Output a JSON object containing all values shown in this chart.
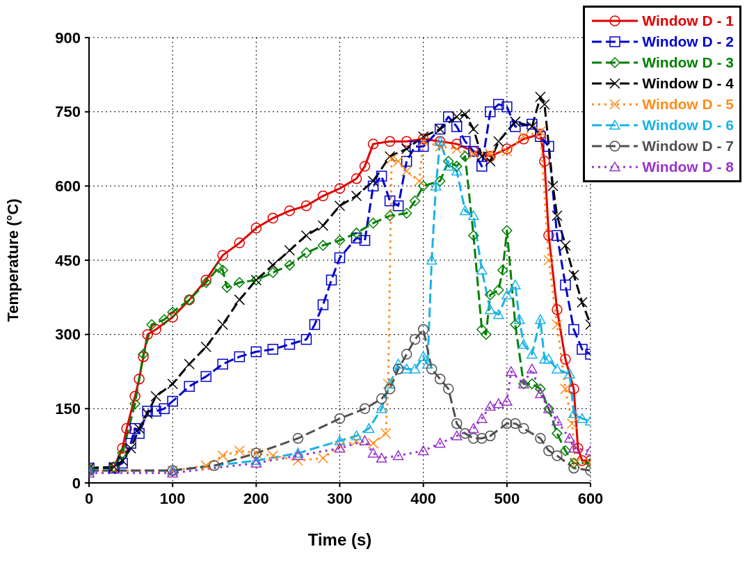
{
  "chart_data": {
    "type": "line",
    "xlabel": "Time (s)",
    "ylabel": "Temperature (°C)",
    "xlim": [
      0,
      600
    ],
    "xticks": [
      0,
      100,
      200,
      300,
      400,
      500,
      600
    ],
    "ylim": [
      0,
      900
    ],
    "yticks": [
      0,
      150,
      300,
      450,
      600,
      750,
      900
    ],
    "grid": true,
    "legend": "top right",
    "series": [
      {
        "name": "Window D - 1",
        "color": "#e00000",
        "marker": "circle",
        "line_style": "solid",
        "x": [
          30,
          40,
          45,
          55,
          60,
          65,
          70,
          80,
          100,
          120,
          140,
          160,
          180,
          200,
          220,
          240,
          260,
          280,
          300,
          320,
          330,
          340,
          360,
          380,
          400,
          420,
          440,
          460,
          480,
          500,
          520,
          540,
          545,
          550,
          560,
          570,
          580,
          585,
          590,
          600
        ],
        "values": [
          32,
          70,
          110,
          175,
          210,
          255,
          300,
          310,
          335,
          370,
          410,
          460,
          485,
          515,
          535,
          550,
          560,
          580,
          595,
          615,
          640,
          685,
          690,
          690,
          695,
          690,
          685,
          670,
          660,
          675,
          695,
          705,
          650,
          500,
          350,
          250,
          190,
          70,
          45,
          45
        ]
      },
      {
        "name": "Window D - 2",
        "color": "#0000cc",
        "marker": "square",
        "line_style": "dashed",
        "x": [
          0,
          30,
          40,
          50,
          55,
          60,
          70,
          80,
          90,
          100,
          120,
          140,
          160,
          180,
          200,
          220,
          240,
          260,
          270,
          280,
          290,
          300,
          320,
          330,
          340,
          350,
          360,
          370,
          380,
          390,
          400,
          420,
          430,
          440,
          450,
          460,
          470,
          480,
          490,
          500,
          510,
          530,
          540,
          550,
          560,
          570,
          580,
          590,
          600
        ],
        "values": [
          30,
          30,
          40,
          80,
          110,
          100,
          145,
          145,
          150,
          165,
          195,
          215,
          240,
          255,
          265,
          270,
          280,
          290,
          320,
          360,
          410,
          455,
          495,
          490,
          600,
          620,
          570,
          560,
          650,
          680,
          680,
          715,
          740,
          720,
          690,
          670,
          640,
          750,
          765,
          760,
          720,
          725,
          700,
          680,
          500,
          400,
          310,
          270,
          260
        ]
      },
      {
        "name": "Window D - 3",
        "color": "#008000",
        "marker": "diamond",
        "line_style": "dashed",
        "x": [
          0,
          30,
          40,
          55,
          65,
          75,
          90,
          100,
          120,
          140,
          155,
          160,
          165,
          180,
          200,
          220,
          240,
          260,
          280,
          300,
          320,
          340,
          360,
          380,
          390,
          400,
          420,
          430,
          440,
          450,
          460,
          470,
          475,
          480,
          490,
          495,
          500,
          510,
          520,
          530,
          540,
          550,
          560,
          570,
          580,
          600
        ],
        "values": [
          30,
          32,
          60,
          160,
          260,
          320,
          330,
          345,
          370,
          405,
          435,
          430,
          395,
          405,
          410,
          425,
          440,
          465,
          480,
          490,
          505,
          525,
          540,
          545,
          570,
          600,
          610,
          650,
          640,
          660,
          500,
          310,
          300,
          380,
          390,
          430,
          510,
          320,
          200,
          200,
          190,
          150,
          100,
          65,
          40,
          40
        ]
      },
      {
        "name": "Window D - 4",
        "color": "#000000",
        "marker": "cross",
        "line_style": "dashed",
        "x": [
          0,
          30,
          40,
          50,
          60,
          70,
          80,
          100,
          120,
          140,
          160,
          180,
          200,
          220,
          240,
          260,
          280,
          300,
          320,
          340,
          360,
          380,
          400,
          420,
          440,
          450,
          460,
          470,
          480,
          490,
          510,
          530,
          540,
          545,
          555,
          560,
          570,
          580,
          590,
          600
        ],
        "values": [
          30,
          32,
          45,
          70,
          110,
          140,
          175,
          200,
          240,
          275,
          320,
          370,
          410,
          440,
          470,
          500,
          520,
          560,
          580,
          610,
          660,
          675,
          700,
          715,
          740,
          745,
          715,
          660,
          650,
          690,
          730,
          720,
          780,
          765,
          600,
          540,
          480,
          420,
          365,
          320
        ]
      },
      {
        "name": "Window D - 5",
        "color": "#ff8c1a",
        "marker": "cross",
        "line_style": "dotted",
        "x": [
          0,
          100,
          140,
          160,
          180,
          200,
          220,
          250,
          280,
          300,
          320,
          340,
          355,
          358,
          362,
          370,
          380,
          395,
          400,
          420,
          440,
          460,
          480,
          500,
          520,
          540,
          550,
          560,
          570,
          578,
          582,
          600
        ],
        "values": [
          25,
          25,
          35,
          55,
          65,
          60,
          55,
          45,
          50,
          75,
          85,
          80,
          100,
          200,
          655,
          650,
          630,
          610,
          690,
          680,
          675,
          665,
          665,
          670,
          700,
          710,
          450,
          320,
          190,
          120,
          40,
          40
        ]
      },
      {
        "name": "Window D - 6",
        "color": "#1ab2e6",
        "marker": "triangle",
        "line_style": "dashed",
        "x": [
          0,
          100,
          200,
          250,
          300,
          320,
          335,
          350,
          360,
          370,
          380,
          390,
          400,
          405,
          410,
          415,
          420,
          430,
          440,
          450,
          460,
          470,
          480,
          490,
          500,
          510,
          515,
          520,
          530,
          540,
          545,
          550,
          560,
          575,
          580,
          590,
          600
        ],
        "values": [
          25,
          25,
          45,
          60,
          85,
          95,
          110,
          150,
          200,
          240,
          230,
          230,
          255,
          240,
          450,
          600,
          690,
          640,
          630,
          550,
          540,
          430,
          350,
          340,
          380,
          400,
          330,
          280,
          260,
          330,
          250,
          250,
          230,
          220,
          140,
          130,
          125
        ]
      },
      {
        "name": "Window D - 7",
        "color": "#505050",
        "marker": "circle",
        "line_style": "dashed",
        "x": [
          0,
          100,
          150,
          200,
          250,
          300,
          330,
          350,
          360,
          370,
          380,
          390,
          400,
          410,
          420,
          430,
          440,
          450,
          460,
          470,
          480,
          500,
          510,
          520,
          540,
          550,
          560,
          580,
          600
        ],
        "values": [
          25,
          25,
          35,
          60,
          90,
          130,
          150,
          170,
          190,
          230,
          260,
          290,
          310,
          230,
          210,
          190,
          120,
          100,
          90,
          90,
          95,
          120,
          120,
          110,
          90,
          65,
          55,
          30,
          25
        ]
      },
      {
        "name": "Window D - 8",
        "color": "#9933cc",
        "marker": "triangle",
        "line_style": "dotted",
        "x": [
          0,
          100,
          200,
          250,
          300,
          330,
          340,
          350,
          370,
          400,
          420,
          440,
          460,
          470,
          480,
          490,
          500,
          505,
          520,
          530,
          540,
          550,
          560,
          575,
          580,
          600
        ],
        "values": [
          20,
          20,
          40,
          55,
          70,
          85,
          60,
          50,
          55,
          65,
          80,
          95,
          110,
          130,
          155,
          160,
          165,
          225,
          200,
          230,
          180,
          150,
          125,
          90,
          70,
          65
        ]
      }
    ]
  }
}
